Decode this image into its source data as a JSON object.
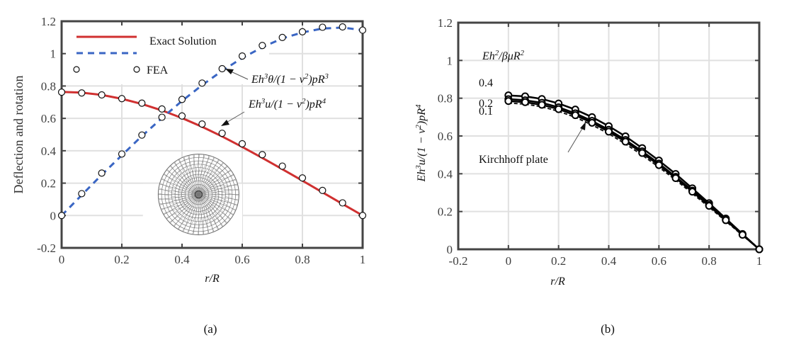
{
  "chart_data": [
    {
      "panel": "(a)",
      "type": "line",
      "xlabel": "r/R",
      "ylabel": "Deflection and rotation",
      "xlim": [
        0,
        1
      ],
      "ylim": [
        -0.2,
        1.2
      ],
      "xticks": [
        "0",
        "0.2",
        "0.4",
        "0.6",
        "0.8",
        "1"
      ],
      "yticks": [
        "-0.2",
        "0",
        "0.2",
        "0.4",
        "0.6",
        "0.8",
        "1",
        "1.2"
      ],
      "grid": true,
      "legend": {
        "placement": "top-left",
        "entries": [
          "Exact Solution",
          "FEA"
        ]
      },
      "x": [
        0,
        0.0667,
        0.1333,
        0.2,
        0.2667,
        0.3333,
        0.4,
        0.4667,
        0.5333,
        0.6,
        0.6667,
        0.7333,
        0.8,
        0.8667,
        0.9333,
        1.0
      ],
      "series": [
        {
          "name": "Exact Solution (deflection)",
          "style": "solid",
          "color": "#d03030",
          "values": [
            0.764,
            0.759,
            0.745,
            0.721,
            0.689,
            0.649,
            0.602,
            0.548,
            0.488,
            0.424,
            0.356,
            0.286,
            0.215,
            0.143,
            0.071,
            0.0
          ]
        },
        {
          "name": "Exact Solution (rotation)",
          "style": "dashed",
          "color": "#3a66c4",
          "values": [
            0.0,
            0.126,
            0.252,
            0.372,
            0.491,
            0.602,
            0.708,
            0.805,
            0.894,
            0.973,
            1.039,
            1.094,
            1.131,
            1.155,
            1.161,
            1.145
          ]
        },
        {
          "name": "FEA (deflection)",
          "style": "markers",
          "values": [
            0.762,
            0.757,
            0.745,
            0.722,
            0.694,
            0.658,
            0.615,
            0.565,
            0.508,
            0.443,
            0.376,
            0.305,
            0.232,
            0.155,
            0.078,
            0.0
          ]
        },
        {
          "name": "FEA (rotation)",
          "style": "markers",
          "values": [
            0.0,
            0.135,
            0.262,
            0.38,
            0.497,
            0.607,
            0.717,
            0.818,
            0.907,
            0.985,
            1.05,
            1.1,
            1.135,
            1.163,
            1.165,
            1.145
          ]
        }
      ],
      "annotations": [
        {
          "text": "Eh³θ/(1 − ν²)pR³",
          "points_to": "rotation curve near r/R≈0.53"
        },
        {
          "text": "Eh³u/(1 − ν²)pR⁴",
          "points_to": "deflection curve near r/R≈0.53"
        }
      ],
      "inset": "circular triangulated finite-element mesh"
    },
    {
      "panel": "(b)",
      "type": "line",
      "xlabel": "r/R",
      "ylabel": "Eh³u/(1 − ν²)pR⁴",
      "xlim": [
        -0.2,
        1
      ],
      "ylim": [
        0,
        1.2
      ],
      "xticks": [
        "-0.2",
        "0",
        "0.2",
        "0.4",
        "0.6",
        "0.8",
        "1"
      ],
      "yticks": [
        "0",
        "0.2",
        "0.4",
        "0.6",
        "0.8",
        "1",
        "1.2"
      ],
      "grid": true,
      "legend_title": "Eh²/βμR²",
      "x": [
        0,
        0.0667,
        0.1333,
        0.2,
        0.2667,
        0.3333,
        0.4,
        0.4667,
        0.5333,
        0.6,
        0.6667,
        0.7333,
        0.8,
        0.8667,
        0.9333,
        1.0
      ],
      "series": [
        {
          "name": "0.4",
          "style": "solid-markers",
          "values": [
            0.815,
            0.81,
            0.796,
            0.772,
            0.74,
            0.7,
            0.652,
            0.598,
            0.536,
            0.47,
            0.399,
            0.323,
            0.244,
            0.163,
            0.081,
            0.0
          ]
        },
        {
          "name": "0.2",
          "style": "solid-markers",
          "values": [
            0.795,
            0.789,
            0.776,
            0.752,
            0.72,
            0.68,
            0.633,
            0.579,
            0.519,
            0.454,
            0.384,
            0.311,
            0.235,
            0.157,
            0.078,
            0.0
          ]
        },
        {
          "name": "0.1",
          "style": "solid-markers",
          "values": [
            0.785,
            0.779,
            0.765,
            0.742,
            0.71,
            0.67,
            0.623,
            0.57,
            0.51,
            0.446,
            0.377,
            0.305,
            0.23,
            0.154,
            0.077,
            0.0
          ]
        },
        {
          "name": "Kirchhoff plate",
          "style": "dashed",
          "values": [
            0.774,
            0.769,
            0.755,
            0.731,
            0.699,
            0.659,
            0.612,
            0.558,
            0.499,
            0.435,
            0.367,
            0.296,
            0.223,
            0.149,
            0.074,
            0.0
          ]
        }
      ],
      "annotations": [
        {
          "text": "Kirchhoff plate",
          "points_to": "lowest curve near r/R≈0.33"
        }
      ]
    }
  ],
  "captions": [
    "(a)",
    "(b)"
  ]
}
